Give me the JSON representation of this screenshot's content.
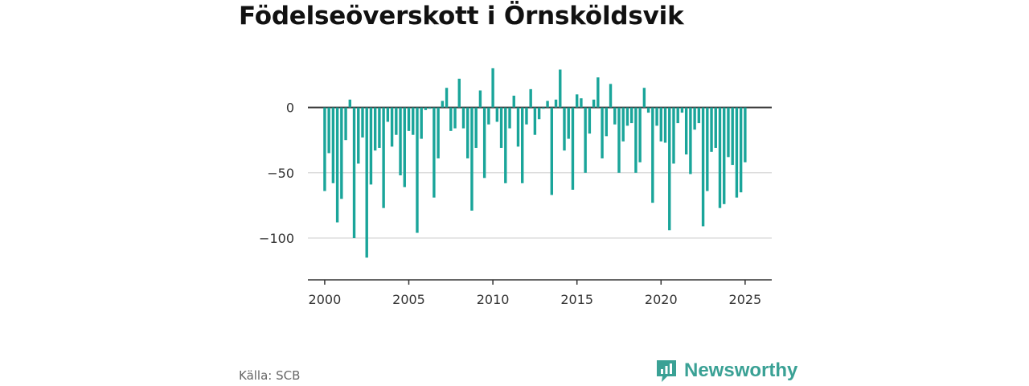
{
  "title": "Födelseöverskott i Örnsköldsvik",
  "source": "Källa: SCB",
  "brand": "Newsworthy",
  "colors": {
    "bar": "#1aa59a",
    "axis": "#333333",
    "grid": "#dddddd",
    "brand": "#3aa195"
  },
  "chart_data": {
    "type": "bar",
    "title": "Födelseöverskott i Örnsköldsvik",
    "xlabel": "",
    "ylabel": "",
    "frequency": "monthly",
    "x_start": "2000-01",
    "xlim": [
      "1999-01",
      "2026-08"
    ],
    "ylim": [
      -132,
      33
    ],
    "y_ticks": [
      0,
      -50,
      -100
    ],
    "y_tick_labels": [
      "0",
      "−50",
      "−100"
    ],
    "x_ticks": [
      2000,
      2005,
      2010,
      2015,
      2020,
      2025
    ],
    "x_tick_labels": [
      "2000",
      "2005",
      "2010",
      "2015",
      "2020",
      "2025"
    ],
    "grid": "horizontal",
    "legend": "none",
    "values": [
      -64,
      -35,
      -58,
      -88,
      -70,
      -25,
      6,
      -100,
      -43,
      -23,
      -115,
      -59,
      -33,
      -31,
      -77,
      -11,
      -30,
      -21,
      -52,
      -61,
      -18,
      -21,
      -96,
      -24,
      -2,
      -1,
      -69,
      -39,
      5,
      15,
      -18,
      -16,
      22,
      -16,
      -39,
      -79,
      -31,
      13,
      -54,
      -13,
      30,
      -11,
      -31,
      -58,
      -16,
      9,
      -30,
      -58,
      -13,
      14,
      -21,
      -9,
      -1,
      5,
      -67,
      6,
      29,
      -33,
      -24,
      -63,
      10,
      7,
      -50,
      -20,
      6,
      23,
      -39,
      -22,
      18,
      -13,
      -50,
      -26,
      -14,
      -12,
      -50,
      -42,
      15,
      -4,
      -73,
      -14,
      -26,
      -27,
      -94,
      -43,
      -12,
      -4,
      -36,
      -51,
      -17,
      -12,
      -91,
      -64,
      -34,
      -31,
      -77,
      -74,
      -38,
      -44,
      -69,
      -65,
      -42
    ],
    "notes": "Quarterly bars from 2000 Q1 to 2025 Q1; values estimated from gridlines"
  }
}
